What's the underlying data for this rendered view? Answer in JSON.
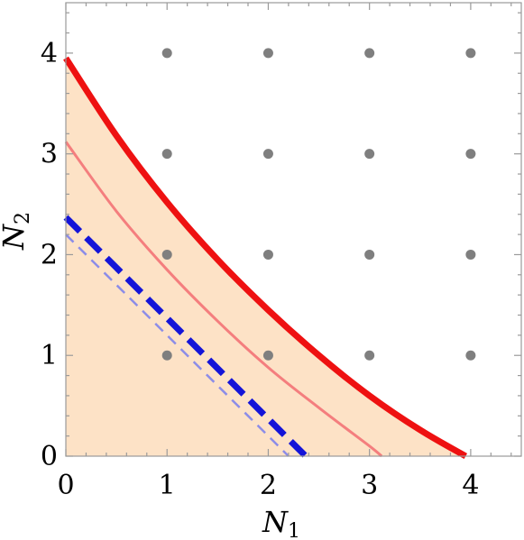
{
  "chart_data": {
    "type": "line",
    "title": "",
    "xlabel": "N",
    "xlabel_sub": "1",
    "ylabel": "N",
    "ylabel_sub": "2",
    "xlim": [
      0,
      4.5
    ],
    "ylim": [
      0,
      4.5
    ],
    "x_ticks": [
      0,
      1,
      2,
      3,
      4
    ],
    "y_ticks": [
      0,
      1,
      2,
      3,
      4
    ],
    "grid": false,
    "colors": {
      "outer_curve": "#ee1111",
      "inner_curve": "#f47e7e",
      "band_fill": "#fde2c6",
      "blue_thick": "#1414d8",
      "blue_thin": "#8c8ce8",
      "points": "#7f7f7f"
    },
    "series": [
      {
        "style": "thick-solid-red",
        "x": [
          0,
          0.5,
          1,
          1.5,
          2,
          2.5,
          3,
          3.5,
          3.95
        ],
        "y": [
          3.95,
          3.18,
          2.52,
          1.95,
          1.45,
          1.0,
          0.6,
          0.26,
          0.0
        ]
      },
      {
        "style": "thin-solid-pink",
        "x": [
          0,
          0.5,
          1,
          1.5,
          2,
          2.5,
          3,
          3.12
        ],
        "y": [
          3.12,
          2.43,
          1.85,
          1.34,
          0.88,
          0.48,
          0.1,
          0.0
        ]
      },
      {
        "style": "thick-dashed-blue",
        "x": [
          0,
          2.37
        ],
        "y": [
          2.37,
          0.0
        ]
      },
      {
        "style": "thin-dashed-blue",
        "x": [
          0,
          2.2
        ],
        "y": [
          2.2,
          0.0
        ]
      }
    ],
    "points": {
      "x": [
        1,
        2,
        3,
        4,
        1,
        2,
        3,
        4,
        1,
        2,
        3,
        4,
        1,
        2,
        3,
        4
      ],
      "y": [
        1,
        1,
        1,
        1,
        2,
        2,
        2,
        2,
        3,
        3,
        3,
        3,
        4,
        4,
        4,
        4
      ]
    }
  }
}
